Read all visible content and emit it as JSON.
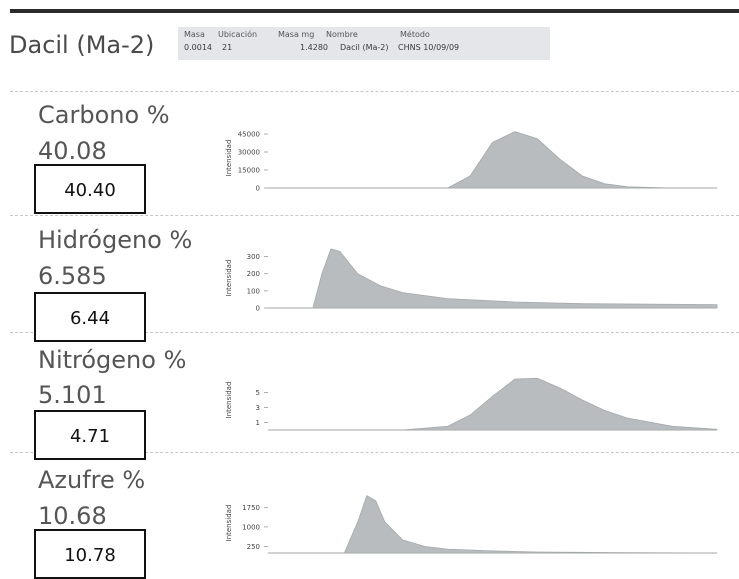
{
  "sample_title": "Dacil (Ma-2)",
  "info_table": {
    "headers": [
      "Masa",
      "Ubicación",
      "Masa mg",
      "Nombre",
      "Método"
    ],
    "values": [
      "0.0014",
      "21",
      "1.4280",
      "Dacil (Ma-2)",
      "CHNS 10/09/09"
    ]
  },
  "chart_data": [
    {
      "type": "area",
      "element": "Carbono %",
      "measured": "40.08",
      "boxed_value": "40.40",
      "ylabel": "Intensidad",
      "yticks": [
        "45000",
        "30000",
        "15000",
        "0"
      ],
      "ylim": [
        0,
        50000
      ],
      "x": [
        0,
        0.25,
        0.4,
        0.45,
        0.5,
        0.55,
        0.6,
        0.65,
        0.7,
        0.75,
        0.8,
        0.9,
        1.0
      ],
      "y": [
        0,
        0,
        0,
        10000,
        38000,
        47000,
        41000,
        24000,
        10000,
        3500,
        1000,
        0,
        0
      ],
      "color": "#b9bcbe"
    },
    {
      "type": "area",
      "element": "Hidrógeno %",
      "measured": "6.585",
      "boxed_value": "6.44",
      "ylabel": "Intensidad",
      "yticks": [
        "300",
        "200",
        "100",
        "0"
      ],
      "ylim": [
        0,
        350
      ],
      "x": [
        0,
        0.1,
        0.12,
        0.14,
        0.16,
        0.2,
        0.25,
        0.3,
        0.4,
        0.55,
        0.7,
        1.0
      ],
      "y": [
        0,
        0,
        200,
        345,
        330,
        200,
        130,
        90,
        55,
        35,
        25,
        20
      ],
      "color": "#b9bcbe"
    },
    {
      "type": "area",
      "element": "Nitrógeno %",
      "measured": "5.101",
      "boxed_value": "4.71",
      "ylabel": "Intensidad",
      "yticks": [
        "5",
        "3",
        "1"
      ],
      "ylim": [
        0,
        8
      ],
      "x": [
        0,
        0.3,
        0.4,
        0.45,
        0.5,
        0.55,
        0.6,
        0.65,
        0.7,
        0.75,
        0.8,
        0.9,
        1.0
      ],
      "y": [
        0,
        0,
        0.5,
        2,
        4.5,
        6.8,
        6.9,
        5.6,
        4,
        2.6,
        1.6,
        0.5,
        0.1
      ],
      "color": "#b9bcbe"
    },
    {
      "type": "area",
      "element": "Azufre %",
      "measured": "10.68",
      "boxed_value": "10.78",
      "ylabel": "Intensidad",
      "yticks": [
        "1750",
        "1000",
        "250"
      ],
      "ylim": [
        0,
        2300
      ],
      "x": [
        0,
        0.17,
        0.2,
        0.22,
        0.24,
        0.26,
        0.3,
        0.35,
        0.4,
        0.5,
        0.6,
        0.8,
        1.0
      ],
      "y": [
        0,
        0,
        1200,
        2200,
        2000,
        1200,
        500,
        250,
        150,
        80,
        40,
        15,
        0
      ],
      "color": "#b9bcbe"
    }
  ]
}
